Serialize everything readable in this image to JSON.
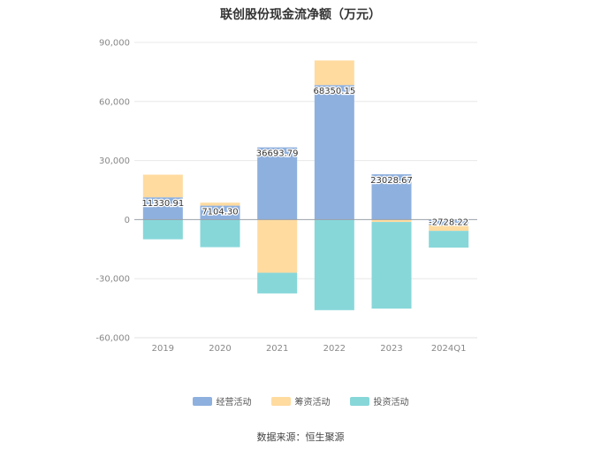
{
  "chart_data": {
    "type": "bar",
    "stacked": true,
    "title": "联创股份现金流净额（万元）",
    "categories": [
      "2019",
      "2020",
      "2021",
      "2022",
      "2023",
      "2024Q1"
    ],
    "series": [
      {
        "name": "经营活动",
        "color": "#8eb0de",
        "values": [
          11330.91,
          7104.3,
          36693.79,
          68350.15,
          23028.67,
          -2728.22
        ]
      },
      {
        "name": "筹资活动",
        "color": "#ffdba0",
        "values": [
          11500,
          1500,
          -27000,
          12500,
          -1200,
          -3000
        ]
      },
      {
        "name": "投资活动",
        "color": "#87d7d9",
        "values": [
          -10000,
          -14000,
          -10500,
          -46000,
          -44000,
          -8500
        ]
      }
    ],
    "data_labels": [
      "11330.91",
      "7104.30",
      "36693.79",
      "68350.15",
      "23028.67",
      "-2728.22"
    ],
    "y_ticks": [
      "90,000",
      "60,000",
      "30,000",
      "0",
      "-30,000",
      "-60,000"
    ],
    "ylim": [
      -60000,
      90000
    ],
    "legend_position": "bottom",
    "grid": true
  },
  "source": "数据来源：恒生聚源"
}
